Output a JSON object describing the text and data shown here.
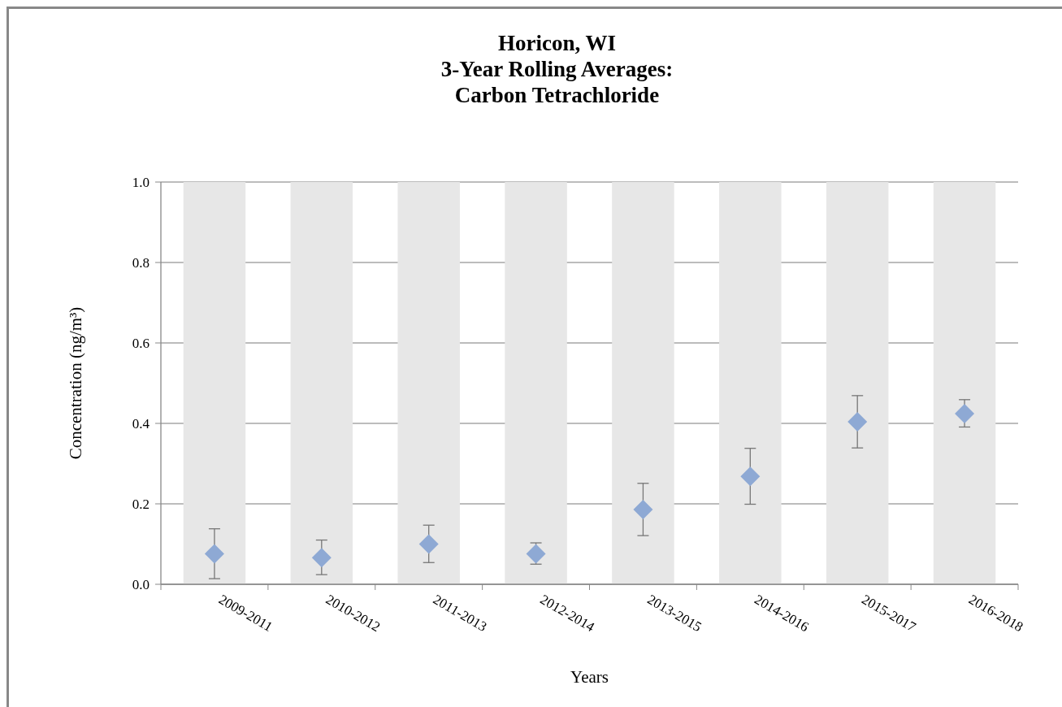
{
  "chart_data": {
    "type": "bar",
    "title": "Horicon, WI\n3-Year Rolling Averages:\nCarbon Tetrachloride",
    "xlabel": "Years",
    "ylabel": "Concentration (ng/m³)",
    "categories": [
      "2009-2011",
      "2010-2012",
      "2011-2013",
      "2012-2014",
      "2013-2015",
      "2014-2016",
      "2015-2017",
      "2016-2018"
    ],
    "series": [
      {
        "color": "#e7e7e7",
        "values": [
          1.0,
          1.0,
          1.0,
          1.0,
          1.0,
          1.0,
          1.0,
          1.0
        ]
      },
      {
        "type": "scatter",
        "color": "#8ea9d4",
        "marker": "diamond",
        "values": [
          0.076,
          0.066,
          0.1,
          0.076,
          0.186,
          0.268,
          0.404,
          0.424
        ],
        "errors": [
          [
            0.014,
            0.138
          ],
          [
            0.024,
            0.11
          ],
          [
            0.054,
            0.147
          ],
          [
            0.05,
            0.103
          ],
          [
            0.121,
            0.251
          ],
          [
            0.199,
            0.338
          ],
          [
            0.339,
            0.469
          ],
          [
            0.391,
            0.459
          ]
        ]
      }
    ],
    "ylim": [
      0,
      1.0
    ],
    "yticks": [
      {
        "value": 0,
        "label": "0.0"
      },
      {
        "value": 0.2,
        "label": "0.2"
      },
      {
        "value": 0.4,
        "label": "0.4"
      },
      {
        "value": 0.6,
        "label": "0.6"
      },
      {
        "value": 0.8,
        "label": "0.8"
      },
      {
        "value": 1.0,
        "label": "1.0"
      }
    ],
    "grid": "y"
  }
}
